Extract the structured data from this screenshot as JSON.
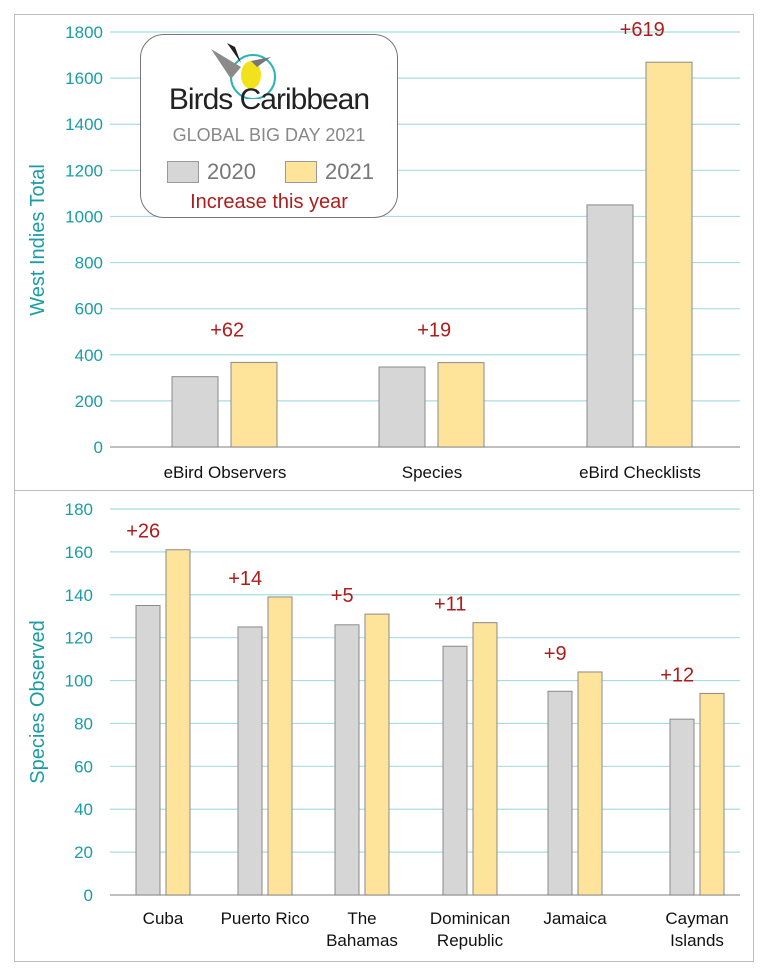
{
  "colors": {
    "y2020": "#d6d6d6",
    "y2021": "#fde49a",
    "grid": "#a9dde2",
    "axis": "#1a9ca6",
    "annot": "#b01b1b"
  },
  "legend": {
    "logo_left": "Birds",
    "logo_right": "Caribbean",
    "subtitle": "GLOBAL BIG DAY 2021",
    "series": [
      "2020",
      "2021"
    ],
    "note": "Increase this year"
  },
  "chart_data": [
    {
      "type": "bar",
      "title": "",
      "ylabel": "West Indies Total",
      "xlabel": "",
      "ylim": [
        0,
        1800
      ],
      "yticks": [
        0,
        200,
        400,
        600,
        800,
        1000,
        1200,
        1400,
        1600,
        1800
      ],
      "grid": true,
      "categories": [
        "eBird Observers",
        "Species",
        "eBird Checklists"
      ],
      "series": [
        {
          "name": "2020",
          "values": [
            305,
            347,
            1050
          ]
        },
        {
          "name": "2021",
          "values": [
            367,
            366,
            1669
          ]
        }
      ],
      "annotations": [
        "+62",
        "+19",
        "+619"
      ]
    },
    {
      "type": "bar",
      "title": "",
      "ylabel": "Species Observed",
      "xlabel": "",
      "ylim": [
        0,
        180
      ],
      "yticks": [
        0,
        20,
        40,
        60,
        80,
        100,
        120,
        140,
        160,
        180
      ],
      "grid": true,
      "categories": [
        [
          "Cuba"
        ],
        [
          "Puerto Rico"
        ],
        [
          "The",
          "Bahamas"
        ],
        [
          "Dominican",
          "Republic"
        ],
        [
          "Jamaica"
        ],
        [
          "Cayman",
          "Islands"
        ]
      ],
      "series": [
        {
          "name": "2020",
          "values": [
            135,
            125,
            126,
            116,
            95,
            82
          ]
        },
        {
          "name": "2021",
          "values": [
            161,
            139,
            131,
            127,
            104,
            94
          ]
        }
      ],
      "annotations": [
        "+26",
        "+14",
        "+5",
        "+11",
        "+9",
        "+12"
      ]
    }
  ]
}
